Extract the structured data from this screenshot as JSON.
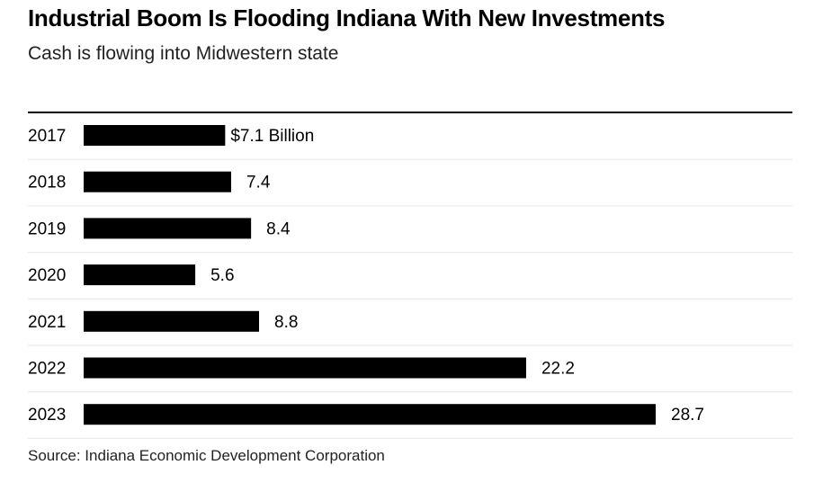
{
  "chart_data": {
    "type": "bar",
    "orientation": "horizontal",
    "title": "Industrial Boom Is Flooding Indiana With New Investments",
    "subtitle": "Cash is flowing into Midwestern state",
    "categories": [
      "2017",
      "2018",
      "2019",
      "2020",
      "2021",
      "2022",
      "2023"
    ],
    "values": [
      7.1,
      7.4,
      8.4,
      5.6,
      8.8,
      22.2,
      28.7
    ],
    "value_labels": [
      "$7.1 Billion",
      "7.4",
      "8.4",
      "5.6",
      "8.8",
      "22.2",
      "28.7"
    ],
    "xlabel": "",
    "ylabel": "",
    "xlim": [
      0,
      28.7
    ],
    "grid": false,
    "bar_color": "#000000",
    "separator_color": "#e6e6e6",
    "source": "Source: Indiana Economic Development Corporation"
  }
}
